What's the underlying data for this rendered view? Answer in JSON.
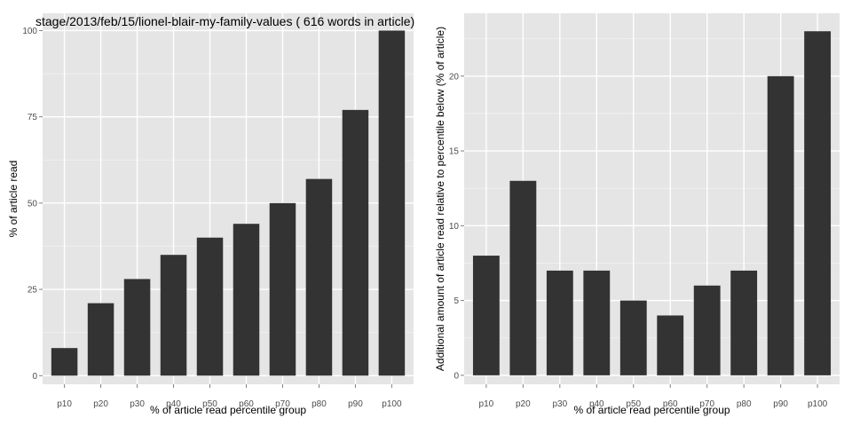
{
  "chart_data": [
    {
      "type": "bar",
      "title": "stage/2013/feb/15/lionel-blair-my-family-values ( 616 words in article)",
      "xlabel": "% of article read percentile group",
      "ylabel": "% of article read",
      "categories": [
        "p10",
        "p20",
        "p30",
        "p40",
        "p50",
        "p60",
        "p70",
        "p80",
        "p90",
        "p100"
      ],
      "values": [
        8,
        21,
        28,
        35,
        40,
        44,
        50,
        57,
        77,
        100
      ],
      "ylim": [
        -2.5,
        105
      ],
      "yticks": [
        0,
        25,
        50,
        75,
        100
      ],
      "grid": true,
      "colors": {
        "bar": "#333333",
        "panel": "#e5e5e5",
        "grid_major": "#ffffff",
        "grid_minor": "#f2f2f2",
        "tick_text": "#4d4d4d"
      }
    },
    {
      "type": "bar",
      "title": "",
      "xlabel": "% of article read percentile group",
      "ylabel": "Additional amount of article read relative to percentile below (% of article)",
      "categories": [
        "p10",
        "p20",
        "p30",
        "p40",
        "p50",
        "p60",
        "p70",
        "p80",
        "p90",
        "p100"
      ],
      "values": [
        8,
        13,
        7,
        7,
        5,
        4,
        6,
        7,
        20,
        23
      ],
      "ylim": [
        -0.6,
        24.2
      ],
      "yticks": [
        0,
        5,
        10,
        15,
        20
      ],
      "grid": true,
      "colors": {
        "bar": "#333333",
        "panel": "#e5e5e5",
        "grid_major": "#ffffff",
        "grid_minor": "#f2f2f2",
        "tick_text": "#4d4d4d"
      }
    }
  ]
}
